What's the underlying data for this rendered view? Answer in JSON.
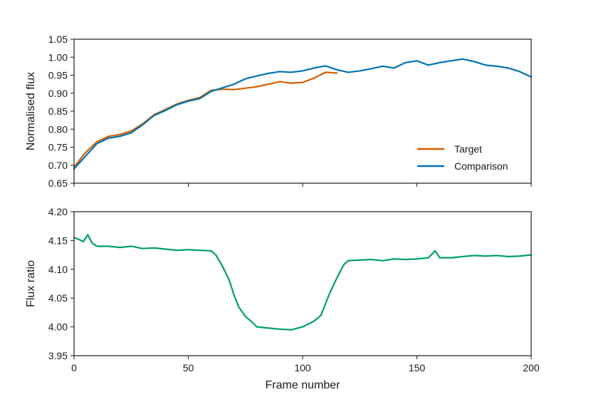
{
  "chart_data": [
    {
      "type": "line",
      "title": "",
      "xlabel": "",
      "ylabel": "Normalised flux",
      "xlim": [
        0,
        200
      ],
      "ylim": [
        0.65,
        1.05
      ],
      "xticks": [
        0,
        50,
        100,
        150,
        200
      ],
      "yticks": [
        "0.65",
        "0.70",
        "0.75",
        "0.80",
        "0.85",
        "0.90",
        "0.95",
        "1.00",
        "1.05"
      ],
      "x_tick_labels_shown": false,
      "grid": false,
      "legend_position": "lower-right",
      "series": [
        {
          "name": "Target",
          "color": "#d55e00",
          "x": [
            0,
            5,
            10,
            15,
            20,
            25,
            30,
            35,
            40,
            45,
            50,
            55,
            60,
            65,
            70,
            75,
            80,
            85,
            90,
            95,
            100,
            105,
            110,
            115
          ],
          "y": [
            0.695,
            0.735,
            0.765,
            0.78,
            0.785,
            0.795,
            0.815,
            0.84,
            0.855,
            0.87,
            0.88,
            0.888,
            0.908,
            0.911,
            0.91,
            0.914,
            0.918,
            0.925,
            0.932,
            0.928,
            0.93,
            0.942,
            0.958,
            0.956
          ]
        },
        {
          "name": "Comparison",
          "color": "#0072b2",
          "x": [
            0,
            5,
            10,
            15,
            20,
            25,
            30,
            35,
            40,
            45,
            50,
            55,
            60,
            65,
            70,
            75,
            80,
            85,
            90,
            95,
            100,
            105,
            110,
            115,
            120,
            125,
            130,
            135,
            140,
            145,
            150,
            155,
            160,
            165,
            170,
            175,
            180,
            185,
            190,
            195,
            200
          ],
          "y": [
            0.69,
            0.725,
            0.76,
            0.775,
            0.78,
            0.79,
            0.812,
            0.838,
            0.852,
            0.868,
            0.878,
            0.885,
            0.905,
            0.915,
            0.925,
            0.94,
            0.948,
            0.955,
            0.96,
            0.958,
            0.962,
            0.97,
            0.976,
            0.965,
            0.958,
            0.962,
            0.968,
            0.975,
            0.97,
            0.985,
            0.99,
            0.978,
            0.985,
            0.99,
            0.995,
            0.988,
            0.978,
            0.975,
            0.97,
            0.96,
            0.945
          ]
        }
      ]
    },
    {
      "type": "line",
      "title": "",
      "xlabel": "Frame number",
      "ylabel": "Flux ratio",
      "xlim": [
        0,
        200
      ],
      "ylim": [
        3.95,
        4.2
      ],
      "xticks": [
        "0",
        "50",
        "100",
        "150",
        "200"
      ],
      "yticks": [
        "3.95",
        "4.00",
        "4.05",
        "4.10",
        "4.15",
        "4.20"
      ],
      "grid": false,
      "series": [
        {
          "color": "#009e73",
          "x": [
            0,
            2,
            4,
            6,
            8,
            10,
            15,
            20,
            25,
            30,
            35,
            40,
            45,
            50,
            55,
            60,
            62,
            65,
            68,
            70,
            72,
            75,
            78,
            80,
            85,
            90,
            95,
            100,
            105,
            108,
            110,
            112,
            115,
            118,
            120,
            125,
            130,
            135,
            140,
            145,
            150,
            155,
            158,
            160,
            165,
            170,
            175,
            180,
            185,
            190,
            195,
            200
          ],
          "y": [
            4.155,
            4.152,
            4.148,
            4.16,
            4.145,
            4.14,
            4.14,
            4.138,
            4.14,
            4.136,
            4.137,
            4.135,
            4.133,
            4.134,
            4.133,
            4.132,
            4.125,
            4.105,
            4.08,
            4.055,
            4.035,
            4.018,
            4.008,
            4.0,
            3.998,
            3.996,
            3.995,
            4.0,
            4.01,
            4.02,
            4.04,
            4.06,
            4.085,
            4.108,
            4.115,
            4.116,
            4.117,
            4.115,
            4.118,
            4.117,
            4.118,
            4.12,
            4.132,
            4.12,
            4.12,
            4.122,
            4.124,
            4.123,
            4.124,
            4.122,
            4.123,
            4.125
          ]
        }
      ]
    }
  ]
}
